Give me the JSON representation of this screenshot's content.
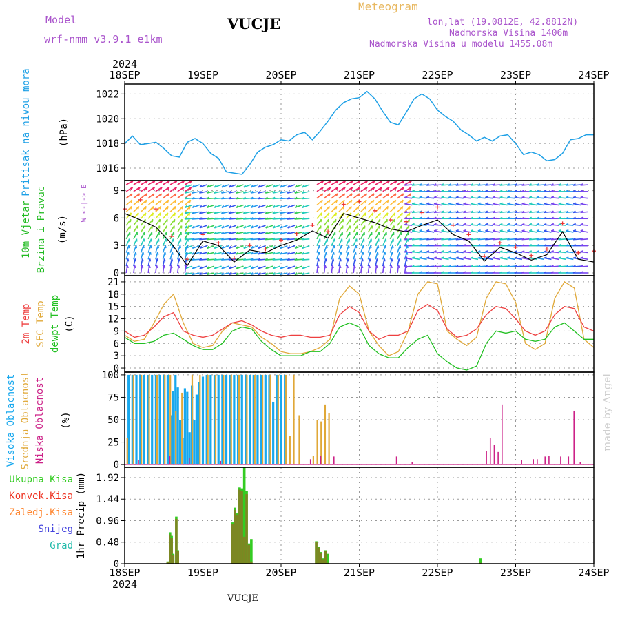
{
  "header": {
    "model_label": "Model",
    "model_name": "wrf-nmm_v3.9.1 e1km",
    "title": "VUCJE",
    "meteogram_label": "Meteogram",
    "lonlat": "lon,lat (19.0812E, 42.8812N)",
    "altitude": "Nadmorska Visina 1406m",
    "model_altitude": "Nadmorska Visina u modelu 1455.08m",
    "footer": "VUCJE",
    "credit": "made by Angel"
  },
  "colors": {
    "pressure": "#1ea0e6",
    "t2m": "#ee4040",
    "tsfc": "#e0a838",
    "tdew": "#22c022",
    "cloud_high": "#18a8ee",
    "cloud_mid": "#e0a838",
    "cloud_low": "#cc2288",
    "rain_total": "#33cc22",
    "rain_conv": "#ee3322",
    "rain_frozen": "#ff8833",
    "snow": "#4444dd",
    "hail": "#22bbaa",
    "label_wind": "#22bb22",
    "label_model": "#aa55cc"
  },
  "time_axis": {
    "year_label": "2024",
    "ticks": [
      "18SEP",
      "19SEP",
      "20SEP",
      "21SEP",
      "22SEP",
      "23SEP",
      "24SEP"
    ]
  },
  "chart_data": [
    {
      "id": "pressure",
      "type": "line",
      "ylabel": [
        "Pritisak na nivou mora",
        "(hPa)"
      ],
      "yticks": [
        1016,
        1018,
        1020,
        1022
      ],
      "ylim": [
        1015,
        1022.8
      ],
      "x_days": [
        0,
        0.1,
        0.2,
        0.3,
        0.4,
        0.5,
        0.6,
        0.7,
        0.8,
        0.9,
        1.0,
        1.1,
        1.2,
        1.3,
        1.4,
        1.5,
        1.6,
        1.7,
        1.8,
        1.9,
        2.0,
        2.1,
        2.2,
        2.3,
        2.4,
        2.5,
        2.6,
        2.7,
        2.8,
        2.9,
        3.0,
        3.1,
        3.2,
        3.3,
        3.4,
        3.5,
        3.6,
        3.7,
        3.8,
        3.9,
        4.0,
        4.1,
        4.2,
        4.3,
        4.4,
        4.5,
        4.6,
        4.7,
        4.8,
        4.9,
        5.0,
        5.1,
        5.2,
        5.3,
        5.4,
        5.5,
        5.6,
        5.7,
        5.8,
        5.9,
        6.0
      ],
      "series": [
        {
          "values": [
            1018,
            1018.6,
            1017.9,
            1018.0,
            1018.1,
            1017.6,
            1017.0,
            1016.9,
            1018.1,
            1018.4,
            1018.0,
            1017.2,
            1016.8,
            1015.7,
            1015.6,
            1015.5,
            1016.3,
            1017.3,
            1017.7,
            1017.9,
            1018.3,
            1018.2,
            1018.7,
            1018.9,
            1018.3,
            1019.0,
            1019.8,
            1020.7,
            1021.3,
            1021.6,
            1021.7,
            1022.2,
            1021.6,
            1020.6,
            1019.7,
            1019.5,
            1020.5,
            1021.6,
            1022.0,
            1021.6,
            1020.7,
            1020.2,
            1019.8,
            1019.1,
            1018.7,
            1018.2,
            1018.5,
            1018.2,
            1018.6,
            1018.7,
            1018.0,
            1017.1,
            1017.3,
            1017.1,
            1016.6,
            1016.7,
            1017.2,
            1018.3,
            1018.4,
            1018.7,
            1018.7
          ]
        }
      ]
    },
    {
      "id": "wind",
      "type": "line",
      "ylabel": [
        "10m Vjetar",
        "Brzina i Pravac",
        "(m/s)"
      ],
      "compass_legend": "W <-|-> E",
      "yticks": [
        0,
        3,
        6,
        9
      ],
      "ylim": [
        -0.3,
        10.1
      ],
      "x_days": [
        0,
        0.2,
        0.4,
        0.6,
        0.8,
        1.0,
        1.2,
        1.4,
        1.6,
        1.8,
        2.0,
        2.2,
        2.4,
        2.6,
        2.8,
        3.0,
        3.2,
        3.4,
        3.6,
        3.8,
        4.0,
        4.2,
        4.4,
        4.6,
        4.8,
        5.0,
        5.2,
        5.4,
        5.6,
        5.8,
        6.0
      ],
      "series": [
        {
          "name": "speed",
          "values": [
            6.5,
            5.8,
            5.0,
            3.2,
            0.8,
            3.5,
            3.0,
            1.2,
            2.5,
            2.2,
            3.0,
            3.6,
            4.6,
            3.8,
            6.5,
            6.0,
            5.5,
            4.8,
            4.5,
            5.2,
            5.8,
            4.2,
            3.5,
            1.3,
            2.8,
            2.2,
            1.4,
            2.0,
            4.5,
            1.5,
            1.2
          ]
        },
        {
          "name": "gust",
          "values": [
            7.0,
            8.0,
            7.0,
            4.0,
            1.5,
            4.2,
            3.3,
            1.6,
            3.0,
            2.6,
            3.6,
            4.3,
            5.2,
            4.5,
            7.5,
            7.8,
            6.8,
            5.8,
            5.6,
            6.6,
            7.2,
            5.2,
            4.2,
            1.8,
            3.3,
            2.8,
            1.9,
            2.6,
            5.4,
            2.2,
            2.4
          ]
        }
      ]
    },
    {
      "id": "temperature",
      "type": "line",
      "ylabel": [
        "2m Temp",
        "SFC Temp",
        "dewpt Temp",
        "(C)"
      ],
      "yticks": [
        0,
        3,
        6,
        9,
        12,
        15,
        18,
        21
      ],
      "ylim": [
        -1,
        22.5
      ],
      "x_days": [
        0,
        0.125,
        0.25,
        0.375,
        0.5,
        0.625,
        0.75,
        0.875,
        1.0,
        1.125,
        1.25,
        1.375,
        1.5,
        1.625,
        1.75,
        1.875,
        2.0,
        2.125,
        2.25,
        2.375,
        2.5,
        2.625,
        2.75,
        2.875,
        3.0,
        3.125,
        3.25,
        3.375,
        3.5,
        3.625,
        3.75,
        3.875,
        4.0,
        4.125,
        4.25,
        4.375,
        4.5,
        4.625,
        4.75,
        4.875,
        5.0,
        5.125,
        5.25,
        5.375,
        5.5,
        5.625,
        5.75,
        5.875,
        6.0
      ],
      "series": [
        {
          "name": "2m Temp",
          "values": [
            9,
            7.5,
            8,
            10,
            12.5,
            13.5,
            9,
            8,
            7.5,
            8,
            9.5,
            11,
            11.5,
            10.5,
            9,
            8,
            7.5,
            8,
            8,
            7.5,
            7.5,
            8,
            13,
            15,
            13.5,
            9,
            7,
            8,
            8,
            9,
            14,
            15.5,
            14,
            9.5,
            7.5,
            8,
            9.5,
            13,
            15,
            14.5,
            12,
            9,
            8,
            9,
            13,
            15,
            14.5,
            10,
            9
          ]
        },
        {
          "name": "SFC Temp",
          "values": [
            8,
            6.5,
            7,
            11,
            15.5,
            18,
            11,
            6,
            5,
            5.5,
            9,
            11,
            10.5,
            10,
            7.5,
            6,
            4,
            3.5,
            3.5,
            4,
            5,
            7,
            17,
            20,
            18,
            9,
            5.5,
            3,
            4,
            9,
            18,
            21,
            20.5,
            9,
            7,
            5.5,
            7.5,
            17,
            21,
            20.5,
            16,
            6,
            4.5,
            6,
            17,
            21,
            19.5,
            7,
            5
          ]
        },
        {
          "name": "dewpt Temp",
          "values": [
            7.5,
            6,
            6,
            6.5,
            8,
            8.5,
            7,
            5.5,
            4.5,
            4.5,
            6,
            9,
            10,
            9.5,
            6.5,
            4.5,
            3,
            3,
            3,
            4,
            4,
            6,
            10,
            11,
            10,
            5.5,
            3.5,
            2.5,
            2.5,
            5,
            7,
            8,
            3.5,
            1.5,
            0,
            -0.5,
            0.5,
            6,
            9,
            8.5,
            9,
            7,
            6.5,
            7,
            10,
            11,
            9,
            7,
            7
          ]
        }
      ]
    },
    {
      "id": "clouds",
      "type": "bar",
      "ylabel": [
        "Visoka Oblacnost",
        "Srednja Oblacnost",
        "Niska Oblacnost",
        "(%)"
      ],
      "yticks": [
        0,
        25,
        50,
        75,
        100
      ],
      "ylim": [
        -3,
        103
      ],
      "series": [
        {
          "name": "Visoka Oblacnost",
          "x_days": [
            0.05,
            0.1,
            0.15,
            0.2,
            0.25,
            0.3,
            0.35,
            0.4,
            0.45,
            0.5,
            0.55,
            0.6,
            0.62,
            0.65,
            0.68,
            0.71,
            0.74,
            0.77,
            0.8,
            0.83,
            0.86,
            0.89,
            0.92,
            0.95,
            1.0,
            1.05,
            1.1,
            1.15,
            1.2,
            1.25,
            1.3,
            1.35,
            1.4,
            1.45,
            1.5,
            1.55,
            1.6,
            1.65,
            1.7,
            1.75,
            1.8,
            1.85,
            1.9,
            1.95,
            2.0,
            2.05
          ],
          "values": [
            100,
            100,
            100,
            100,
            100,
            100,
            100,
            100,
            100,
            100,
            100,
            55,
            82,
            100,
            86,
            50,
            30,
            85,
            81,
            36,
            88,
            50,
            78,
            92,
            98,
            100,
            100,
            100,
            100,
            100,
            100,
            100,
            100,
            100,
            100,
            100,
            100,
            100,
            100,
            100,
            100,
            100,
            70,
            100,
            100,
            100
          ]
        },
        {
          "name": "Srednja Oblacnost",
          "x_days": [
            0.02,
            0.1,
            0.2,
            0.3,
            0.4,
            0.5,
            0.57,
            0.64,
            0.72,
            0.85,
            0.95,
            1.05,
            1.15,
            1.25,
            1.35,
            1.45,
            1.55,
            1.65,
            1.75,
            1.85,
            1.95,
            2.05,
            2.1,
            2.15,
            2.22,
            2.4,
            2.45,
            2.5,
            2.55,
            2.6
          ],
          "values": [
            30,
            100,
            100,
            100,
            100,
            100,
            100,
            60,
            80,
            100,
            100,
            100,
            100,
            100,
            100,
            100,
            100,
            100,
            100,
            100,
            100,
            100,
            32,
            100,
            55,
            10,
            50,
            48,
            67,
            57
          ]
        },
        {
          "name": "Niska Oblacnost",
          "x_days": [
            0.15,
            0.55,
            0.8,
            1.2,
            2.35,
            2.48,
            2.65,
            3.45,
            3.65,
            4.6,
            4.65,
            4.7,
            4.75,
            4.8,
            5.05,
            5.2,
            5.25,
            5.35,
            5.4,
            5.55,
            5.65,
            5.72,
            5.8
          ],
          "values": [
            5,
            10,
            7,
            4,
            6,
            10,
            9,
            9,
            3,
            15,
            30,
            22,
            14,
            67,
            5,
            6,
            6,
            9,
            10,
            9,
            9,
            60,
            3
          ]
        }
      ]
    },
    {
      "id": "precip",
      "type": "bar",
      "ylabel": [
        "1hr Precip (mm)"
      ],
      "legend": [
        "Ukupna Kisa",
        "Konvek.Kisa",
        "Zaledj.Kisa",
        "Snijeg",
        "Grad"
      ],
      "yticks": [
        0,
        0.48,
        0.96,
        1.44,
        1.92
      ],
      "ylim": [
        0,
        2.15
      ],
      "x_days": [
        0.55,
        0.58,
        0.6,
        0.62,
        0.66,
        0.68,
        1.38,
        1.41,
        1.44,
        1.47,
        1.5,
        1.53,
        1.56,
        1.59,
        1.62,
        2.45,
        2.48,
        2.51,
        2.54,
        2.57,
        2.6,
        4.55
      ],
      "series": [
        {
          "name": "Ukupna Kisa",
          "values": [
            0.05,
            0.7,
            0.62,
            0.22,
            1.05,
            0.3,
            0.92,
            1.25,
            1.12,
            1.7,
            1.68,
            2.15,
            1.62,
            0.45,
            0.55,
            0.5,
            0.38,
            0.26,
            0.12,
            0.3,
            0.22,
            0.12
          ]
        },
        {
          "name": "Konvek.Kisa",
          "values": [
            0.03,
            0.65,
            0.58,
            0.2,
            1.0,
            0.28,
            0.88,
            1.2,
            1.08,
            1.65,
            1.62,
            0.6,
            1.55,
            0.42,
            0.05,
            0.48,
            0.36,
            0.24,
            0.1,
            0.28,
            0.02,
            0.02
          ]
        }
      ]
    }
  ]
}
